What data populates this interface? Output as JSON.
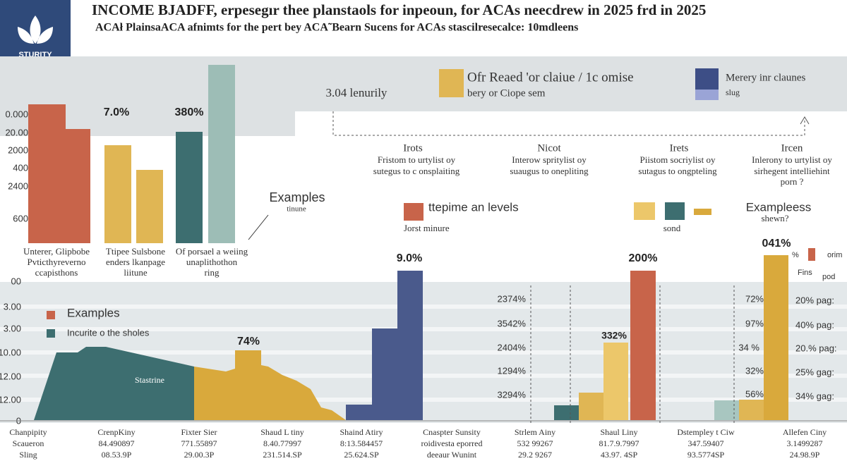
{
  "header": {
    "logo": "STURITY",
    "title": "INCOME BJADFF, erpesegır thee planstaols for inpeoun, for ACAs neecdrew in 2025 frd in 2025",
    "subtitle": "ACAł PlainsaACA afnimts for the pert bey ACA˜Bearn Sucens for ACAs stascilresecalce: 10mdleens"
  },
  "top_chart": {
    "axis_labels": [
      "0.000",
      "20.00",
      "2000",
      "400",
      "2400",
      "600"
    ],
    "bar_labels": [
      "7.0%",
      "380%"
    ],
    "categories": [
      [
        "Unterer, Glipbobe",
        "Pvticthyreverno",
        "ccapisthons"
      ],
      [
        "Ttipee Sulsbone",
        "enders lkanpage",
        "liitune"
      ],
      [
        "Of porsael a weiing",
        "unaplithothon",
        "ring"
      ]
    ]
  },
  "band": {
    "label": "3.04 lenurily",
    "legend": [
      {
        "title": "Ofr Reaed 'or claiue / 1c omise",
        "note": "bery or Ciope sem"
      },
      {
        "title": "Merery inr claunes",
        "note": "slug"
      }
    ]
  },
  "columns": [
    {
      "title": "Irots",
      "lines": [
        "Fristom to urtylist oy",
        "sutegus to c onsplaiting"
      ]
    },
    {
      "title": "Nicot",
      "lines": [
        "Interow spritylist oy",
        "suaugus to onepliting"
      ]
    },
    {
      "title": "Irets",
      "lines": [
        "Piistom socriylist oy",
        "sutagus to ongpteling"
      ]
    },
    {
      "title": "Ircen",
      "lines": [
        "Inlerony to urtylist oy",
        "sirhegent intelliehint",
        "porn ?"
      ]
    }
  ],
  "middle": {
    "examples": "Examples",
    "examples_note": "tinune",
    "levels": "ttepime an levels",
    "levels_note": "Jorst minure",
    "sond": "sond",
    "examples2": "Exampleess",
    "examples2_note": "shewn?"
  },
  "bottom_chart": {
    "axis_labels": [
      "00",
      "3.00",
      "3.00",
      "10.00",
      "12.00",
      "12.00",
      "0"
    ],
    "legend_title": "Examples",
    "legend_item": "Incurite o the sholes",
    "area_label": "Stastrine",
    "bar_labels": [
      "74%",
      "9.0%",
      "200%",
      "332%",
      "041%"
    ],
    "mid_percents": [
      "2374%",
      "3542%",
      "2404%",
      "1294%",
      "3294%"
    ],
    "right_percents": [
      "72%",
      "97%",
      "34 %",
      "32%",
      "56%"
    ],
    "far_right": [
      "20% pag:",
      "40% pag:",
      "20.% pag:",
      "25% gag:",
      "34% gag:"
    ],
    "corner": [
      "%",
      "orim",
      "Fins",
      "pod"
    ]
  },
  "footer": [
    [
      "Chanpipity",
      "Scaueron",
      "Sling"
    ],
    [
      "CrenpKiny",
      "84.490897",
      "08.53.9P"
    ],
    [
      "Fixter Sier",
      "771.55897",
      "29.00.3P"
    ],
    [
      "Shaud L tiny",
      "8.40.77997",
      "231.514.SP"
    ],
    [
      "Shaind Atiry",
      "8:13.584457",
      "25.624.SP"
    ],
    [
      "Cnaspter Sunsity",
      "roidivesta eporred",
      "deeaur Wunint"
    ],
    [
      "Strlem Ainy",
      "532 99267",
      "29.2 9267"
    ],
    [
      "Shaul Liny",
      "81.7.9.7997",
      "43.97. 4SP"
    ],
    [
      "Dstempley t Ciw",
      "347.59407",
      "93.5774SP"
    ],
    [
      "Allefen Ciny",
      "3.1499287",
      "24.98.9P"
    ]
  ]
}
